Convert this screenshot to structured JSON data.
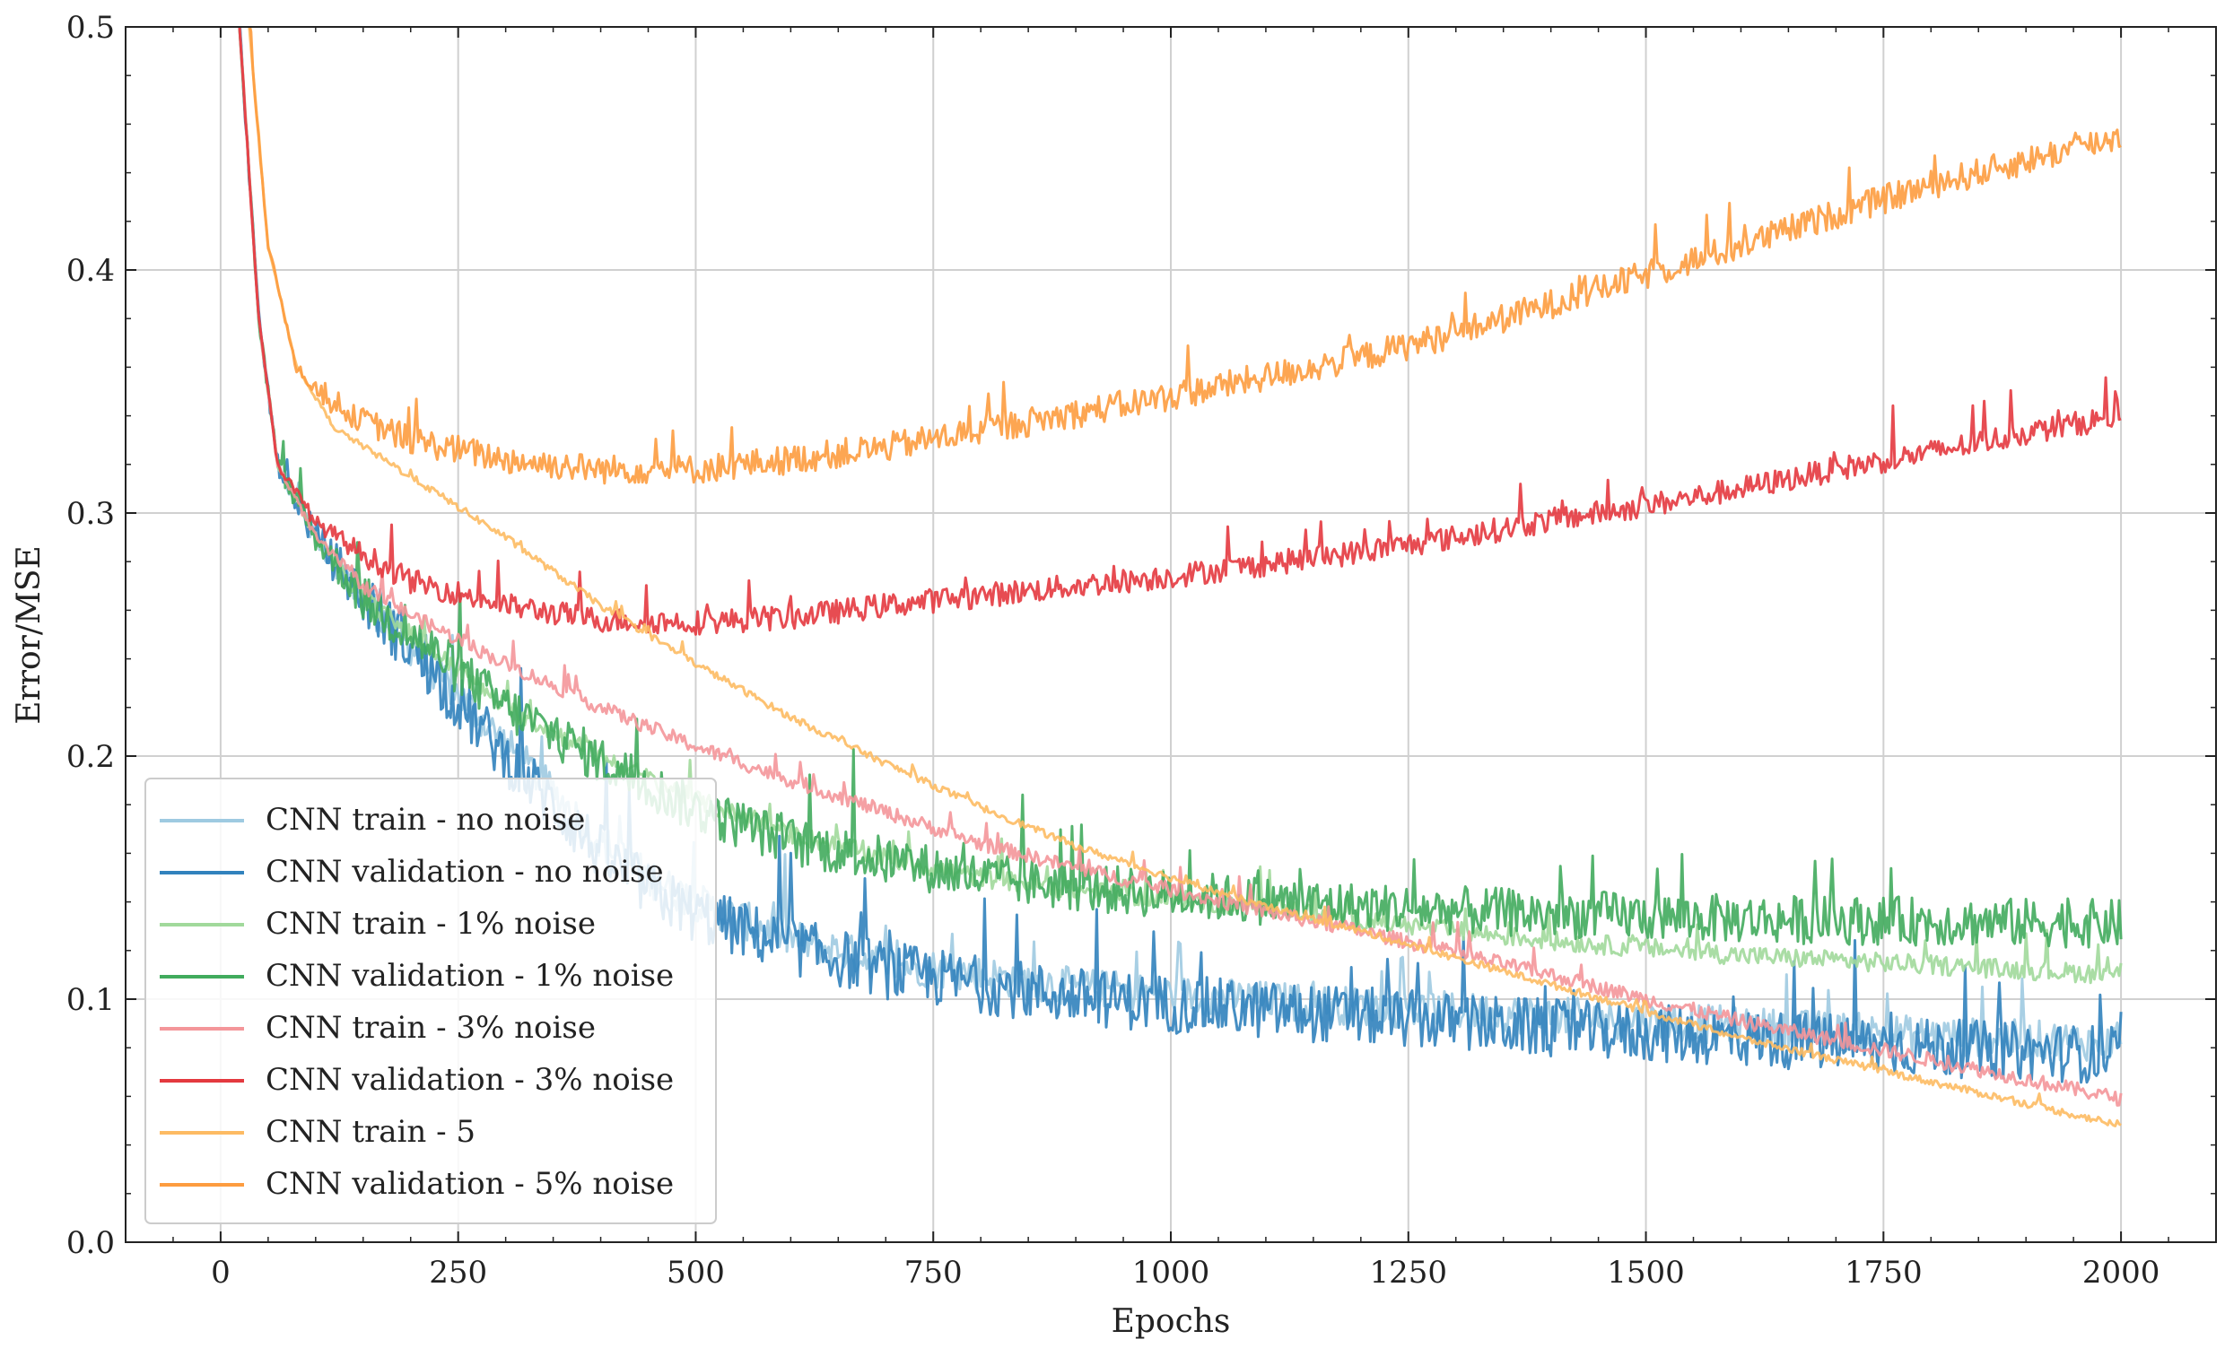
{
  "chart_data": {
    "type": "line",
    "title": "",
    "xlabel": "Epochs",
    "ylabel": "Error/MSE",
    "xlim": [
      -100,
      2100
    ],
    "ylim": [
      0.0,
      0.5
    ],
    "xticks": [
      "0",
      "250",
      "500",
      "750",
      "1000",
      "1250",
      "1500",
      "1750",
      "2000"
    ],
    "xtick_values": [
      0,
      250,
      500,
      750,
      1000,
      1250,
      1500,
      1750,
      2000
    ],
    "yticks": [
      "0.0",
      "0.1",
      "0.2",
      "0.3",
      "0.4",
      "0.5"
    ],
    "ytick_values": [
      0.0,
      0.1,
      0.2,
      0.3,
      0.4,
      0.5
    ],
    "grid": true,
    "legend_position": "lower-left",
    "epochs": 2000,
    "series": [
      {
        "name": "CNN train - no noise",
        "color": "#9ecae1",
        "noise": 0.008,
        "keypoints": [
          [
            10,
            0.6
          ],
          [
            20,
            0.5
          ],
          [
            40,
            0.38
          ],
          [
            60,
            0.32
          ],
          [
            100,
            0.29
          ],
          [
            150,
            0.265
          ],
          [
            200,
            0.245
          ],
          [
            250,
            0.225
          ],
          [
            300,
            0.205
          ],
          [
            350,
            0.185
          ],
          [
            400,
            0.165
          ],
          [
            450,
            0.15
          ],
          [
            500,
            0.14
          ],
          [
            600,
            0.125
          ],
          [
            700,
            0.115
          ],
          [
            800,
            0.11
          ],
          [
            900,
            0.105
          ],
          [
            1000,
            0.102
          ],
          [
            1200,
            0.097
          ],
          [
            1400,
            0.093
          ],
          [
            1600,
            0.089
          ],
          [
            1800,
            0.085
          ],
          [
            2000,
            0.082
          ]
        ]
      },
      {
        "name": "CNN validation - no noise",
        "color": "#3182bd",
        "noise": 0.012,
        "keypoints": [
          [
            10,
            0.6
          ],
          [
            20,
            0.5
          ],
          [
            40,
            0.38
          ],
          [
            60,
            0.32
          ],
          [
            100,
            0.29
          ],
          [
            150,
            0.265
          ],
          [
            200,
            0.245
          ],
          [
            250,
            0.222
          ],
          [
            300,
            0.2
          ],
          [
            350,
            0.18
          ],
          [
            400,
            0.16
          ],
          [
            450,
            0.145
          ],
          [
            500,
            0.135
          ],
          [
            600,
            0.122
          ],
          [
            700,
            0.112
          ],
          [
            800,
            0.106
          ],
          [
            900,
            0.101
          ],
          [
            1000,
            0.098
          ],
          [
            1200,
            0.093
          ],
          [
            1400,
            0.088
          ],
          [
            1600,
            0.084
          ],
          [
            1800,
            0.08
          ],
          [
            2000,
            0.077
          ]
        ]
      },
      {
        "name": "CNN train - 1% noise",
        "color": "#a1d99b",
        "noise": 0.004,
        "keypoints": [
          [
            10,
            0.6
          ],
          [
            20,
            0.5
          ],
          [
            40,
            0.38
          ],
          [
            60,
            0.32
          ],
          [
            100,
            0.29
          ],
          [
            150,
            0.265
          ],
          [
            200,
            0.25
          ],
          [
            250,
            0.235
          ],
          [
            300,
            0.22
          ],
          [
            400,
            0.2
          ],
          [
            500,
            0.182
          ],
          [
            600,
            0.168
          ],
          [
            700,
            0.158
          ],
          [
            800,
            0.15
          ],
          [
            900,
            0.145
          ],
          [
            1000,
            0.141
          ],
          [
            1100,
            0.138
          ],
          [
            1200,
            0.133
          ],
          [
            1300,
            0.128
          ],
          [
            1400,
            0.124
          ],
          [
            1500,
            0.121
          ],
          [
            1600,
            0.118
          ],
          [
            1700,
            0.116
          ],
          [
            1800,
            0.114
          ],
          [
            1900,
            0.112
          ],
          [
            2000,
            0.11
          ]
        ]
      },
      {
        "name": "CNN validation - 1% noise",
        "color": "#41ab5d",
        "noise": 0.01,
        "keypoints": [
          [
            10,
            0.6
          ],
          [
            20,
            0.5
          ],
          [
            40,
            0.38
          ],
          [
            60,
            0.32
          ],
          [
            100,
            0.29
          ],
          [
            150,
            0.265
          ],
          [
            200,
            0.25
          ],
          [
            250,
            0.235
          ],
          [
            300,
            0.22
          ],
          [
            400,
            0.198
          ],
          [
            500,
            0.178
          ],
          [
            600,
            0.165
          ],
          [
            700,
            0.157
          ],
          [
            800,
            0.15
          ],
          [
            900,
            0.146
          ],
          [
            1000,
            0.143
          ],
          [
            1200,
            0.138
          ],
          [
            1400,
            0.135
          ],
          [
            1600,
            0.133
          ],
          [
            1800,
            0.132
          ],
          [
            2000,
            0.131
          ]
        ]
      },
      {
        "name": "CNN train - 3% noise",
        "color": "#f4969a",
        "noise": 0.003,
        "keypoints": [
          [
            10,
            0.6
          ],
          [
            20,
            0.5
          ],
          [
            40,
            0.38
          ],
          [
            60,
            0.32
          ],
          [
            100,
            0.29
          ],
          [
            150,
            0.27
          ],
          [
            200,
            0.258
          ],
          [
            300,
            0.238
          ],
          [
            400,
            0.22
          ],
          [
            500,
            0.204
          ],
          [
            600,
            0.19
          ],
          [
            700,
            0.177
          ],
          [
            800,
            0.164
          ],
          [
            900,
            0.154
          ],
          [
            1000,
            0.145
          ],
          [
            1100,
            0.136
          ],
          [
            1200,
            0.128
          ],
          [
            1300,
            0.119
          ],
          [
            1400,
            0.11
          ],
          [
            1500,
            0.1
          ],
          [
            1600,
            0.091
          ],
          [
            1700,
            0.083
          ],
          [
            1800,
            0.075
          ],
          [
            1900,
            0.067
          ],
          [
            2000,
            0.059
          ]
        ]
      },
      {
        "name": "CNN validation - 3% noise",
        "color": "#e4393f",
        "noise": 0.005,
        "keypoints": [
          [
            10,
            0.6
          ],
          [
            20,
            0.5
          ],
          [
            40,
            0.38
          ],
          [
            60,
            0.32
          ],
          [
            100,
            0.296
          ],
          [
            150,
            0.283
          ],
          [
            200,
            0.272
          ],
          [
            300,
            0.262
          ],
          [
            400,
            0.256
          ],
          [
            500,
            0.255
          ],
          [
            600,
            0.257
          ],
          [
            700,
            0.262
          ],
          [
            800,
            0.266
          ],
          [
            900,
            0.27
          ],
          [
            1000,
            0.274
          ],
          [
            1100,
            0.279
          ],
          [
            1200,
            0.284
          ],
          [
            1300,
            0.29
          ],
          [
            1400,
            0.297
          ],
          [
            1500,
            0.303
          ],
          [
            1600,
            0.31
          ],
          [
            1700,
            0.318
          ],
          [
            1800,
            0.325
          ],
          [
            1900,
            0.333
          ],
          [
            2000,
            0.34
          ]
        ]
      },
      {
        "name": "CNN train - 5",
        "color": "#fdbb63",
        "noise": 0.0015,
        "keypoints": [
          [
            20,
            0.6
          ],
          [
            30,
            0.5
          ],
          [
            50,
            0.41
          ],
          [
            80,
            0.36
          ],
          [
            120,
            0.335
          ],
          [
            200,
            0.315
          ],
          [
            300,
            0.29
          ],
          [
            400,
            0.262
          ],
          [
            500,
            0.238
          ],
          [
            600,
            0.216
          ],
          [
            700,
            0.197
          ],
          [
            800,
            0.179
          ],
          [
            900,
            0.163
          ],
          [
            1000,
            0.15
          ],
          [
            1100,
            0.138
          ],
          [
            1200,
            0.128
          ],
          [
            1300,
            0.117
          ],
          [
            1400,
            0.106
          ],
          [
            1500,
            0.095
          ],
          [
            1600,
            0.084
          ],
          [
            1700,
            0.075
          ],
          [
            1800,
            0.066
          ],
          [
            1900,
            0.057
          ],
          [
            2000,
            0.048
          ]
        ]
      },
      {
        "name": "CNN validation - 5% noise",
        "color": "#fd9c3f",
        "noise": 0.006,
        "keypoints": [
          [
            20,
            0.6
          ],
          [
            30,
            0.5
          ],
          [
            50,
            0.41
          ],
          [
            80,
            0.36
          ],
          [
            120,
            0.343
          ],
          [
            200,
            0.33
          ],
          [
            300,
            0.322
          ],
          [
            400,
            0.318
          ],
          [
            500,
            0.318
          ],
          [
            600,
            0.322
          ],
          [
            700,
            0.327
          ],
          [
            800,
            0.334
          ],
          [
            900,
            0.341
          ],
          [
            1000,
            0.348
          ],
          [
            1100,
            0.356
          ],
          [
            1200,
            0.364
          ],
          [
            1300,
            0.374
          ],
          [
            1400,
            0.386
          ],
          [
            1500,
            0.398
          ],
          [
            1600,
            0.41
          ],
          [
            1700,
            0.423
          ],
          [
            1800,
            0.435
          ],
          [
            1900,
            0.445
          ],
          [
            2000,
            0.455
          ]
        ]
      }
    ]
  }
}
